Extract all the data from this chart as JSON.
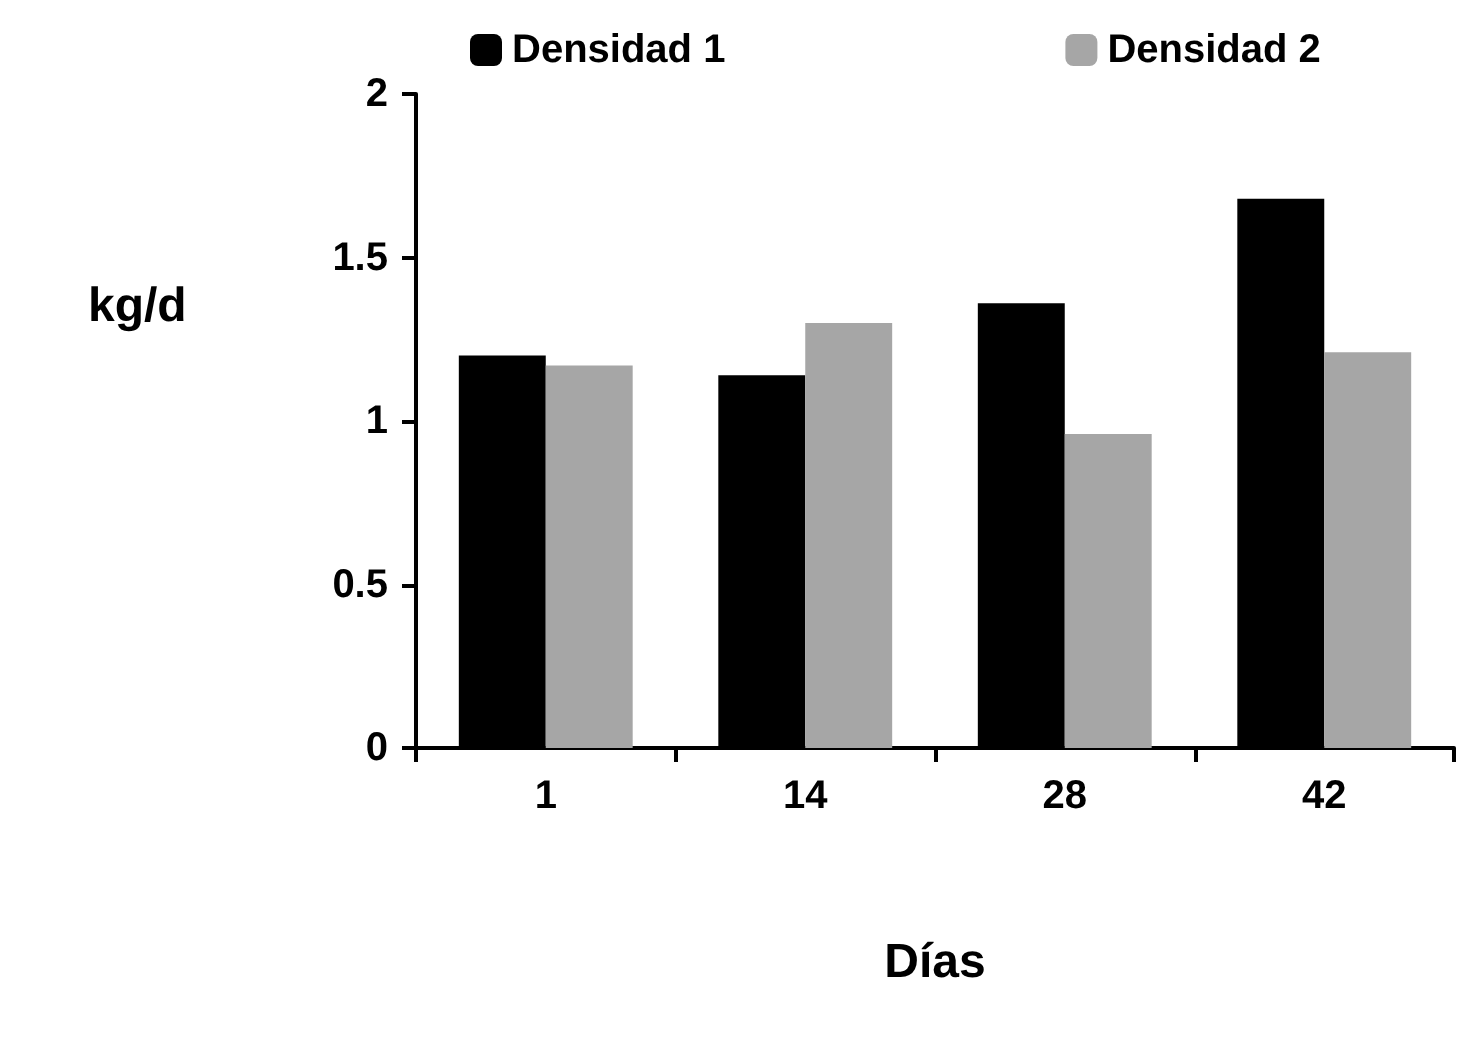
{
  "chart_data": {
    "type": "bar",
    "xlabel": "Días",
    "ylabel": "kg/d",
    "categories": [
      "1",
      "14",
      "28",
      "42"
    ],
    "series": [
      {
        "name": "Densidad 1",
        "color": "#000000",
        "values": [
          1.2,
          1.14,
          1.36,
          1.68
        ]
      },
      {
        "name": "Densidad 2",
        "color": "#a6a6a6",
        "values": [
          1.17,
          1.3,
          0.96,
          1.21
        ]
      }
    ],
    "ylim": [
      0,
      2
    ],
    "yticks": [
      0,
      0.5,
      1,
      1.5,
      2
    ],
    "grid": false,
    "legend": "top"
  }
}
